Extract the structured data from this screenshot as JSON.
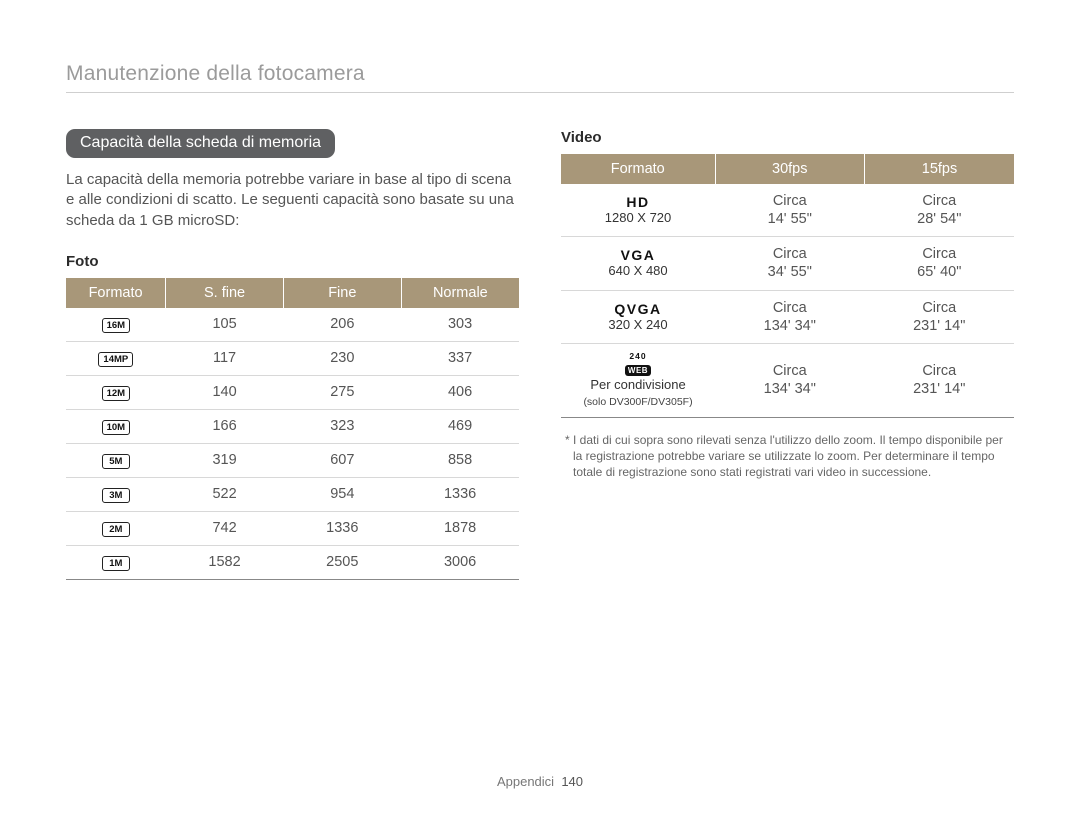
{
  "page_title": "Manutenzione della fotocamera",
  "section_pill": "Capacità della scheda di memoria",
  "intro_para": "La capacità della memoria potrebbe variare in base al tipo di scena e alle condizioni di scatto. Le seguenti capacità sono basate su una scheda da 1 GB microSD:",
  "foto": {
    "heading": "Foto",
    "headers": [
      "Formato",
      "S. fine",
      "Fine",
      "Normale"
    ],
    "rows": [
      {
        "icon": "16M",
        "sfine": "105",
        "fine": "206",
        "norm": "303"
      },
      {
        "icon": "14MP",
        "sfine": "117",
        "fine": "230",
        "norm": "337"
      },
      {
        "icon": "12M",
        "sfine": "140",
        "fine": "275",
        "norm": "406"
      },
      {
        "icon": "10M",
        "sfine": "166",
        "fine": "323",
        "norm": "469"
      },
      {
        "icon": "5M",
        "sfine": "319",
        "fine": "607",
        "norm": "858"
      },
      {
        "icon": "3M",
        "sfine": "522",
        "fine": "954",
        "norm": "1336"
      },
      {
        "icon": "2M",
        "sfine": "742",
        "fine": "1336",
        "norm": "1878"
      },
      {
        "icon": "1M",
        "sfine": "1582",
        "fine": "2505",
        "norm": "3006"
      }
    ]
  },
  "video": {
    "heading": "Video",
    "headers": [
      "Formato",
      "30fps",
      "15fps"
    ],
    "rows": [
      {
        "fmt": "HD",
        "res": "1280 X 720",
        "c30a": "Circa",
        "c30b": "14' 55\"",
        "c15a": "Circa",
        "c15b": "28' 54\""
      },
      {
        "fmt": "VGA",
        "res": "640 X 480",
        "c30a": "Circa",
        "c30b": "34' 55\"",
        "c15a": "Circa",
        "c15b": "65' 40\""
      },
      {
        "fmt": "QVGA",
        "res": "320 X 240",
        "c30a": "Circa",
        "c30b": "134' 34\"",
        "c15a": "Circa",
        "c15b": "231' 14\""
      }
    ],
    "share_row": {
      "icon_num": "240",
      "icon_txt": "WEB",
      "label": "Per condivisione",
      "note": "(solo DV300F/DV305F)",
      "c30a": "Circa",
      "c30b": "134' 34\"",
      "c15a": "Circa",
      "c15b": "231' 14\""
    },
    "footnote": "* I dati di cui sopra sono rilevati senza l'utilizzo dello zoom. Il tempo disponibile per la registrazione potrebbe variare se utilizzate lo zoom. Per determinare il tempo totale di registrazione sono stati registrati vari video in successione."
  },
  "footer": {
    "section": "Appendici",
    "page": "140"
  },
  "colors": {
    "header_bg": "#a89779",
    "pill_bg": "#5f6062",
    "title_gray": "#9b9b9b",
    "body_text": "#555555",
    "row_border": "#d8d8d8"
  }
}
